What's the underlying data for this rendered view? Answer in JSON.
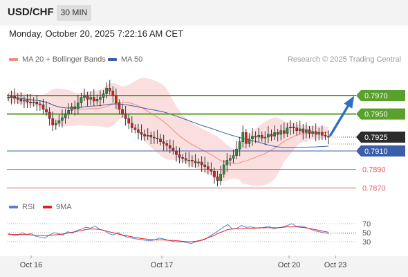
{
  "header": {
    "pair": "USD/CHF",
    "timeframe": "30 MIN"
  },
  "datetime": "Monday, October 20, 2025 7:22:16 AM CET",
  "legend": {
    "bollinger": {
      "label": "MA 20 + Bollinger Bands",
      "color": "#f28b82"
    },
    "ma50": {
      "label": "MA 50",
      "color": "#3a5ea8"
    },
    "rsi": {
      "label": "RSI",
      "color": "#5b7fd6"
    },
    "rsi_ma": {
      "label": "9MA",
      "color": "#e02020"
    }
  },
  "research": "Research © 2025 Trading Central",
  "colors": {
    "up": "#2e8b3e",
    "down": "#c62828",
    "resistance": "#5aa02c",
    "support": "#3a5ea8",
    "target": "#e05a5a",
    "current": "#2b2b2b",
    "arrow": "#2f6fc4",
    "band": "#fbdada"
  },
  "chart_data": [
    {
      "type": "candlestick",
      "x_labels": [
        "Oct 16",
        "Oct 17",
        "Oct 20",
        "Oct 23"
      ],
      "ylim": [
        0.7862,
        0.8
      ],
      "current_price": "0.7925",
      "levels": [
        {
          "label": "0.7970",
          "value": 0.797,
          "kind": "resistance"
        },
        {
          "label": "0.7950",
          "value": 0.795,
          "kind": "resistance"
        },
        {
          "label": "0.7910",
          "value": 0.791,
          "kind": "support"
        },
        {
          "label": "0.7890",
          "value": 0.789,
          "kind": "target"
        },
        {
          "label": "0.7870",
          "value": 0.787,
          "kind": "target"
        }
      ],
      "projection": {
        "from": 0.7925,
        "to": 0.797
      },
      "closes": [
        0.7968,
        0.7969,
        0.7967,
        0.7966,
        0.7964,
        0.7965,
        0.7963,
        0.7962,
        0.7963,
        0.7961,
        0.796,
        0.7955,
        0.7952,
        0.7945,
        0.7938,
        0.794,
        0.7943,
        0.7946,
        0.795,
        0.7954,
        0.7958,
        0.7956,
        0.7962,
        0.7968,
        0.797,
        0.7966,
        0.7968,
        0.7964,
        0.7966,
        0.7968,
        0.7972,
        0.7978,
        0.7975,
        0.797,
        0.7962,
        0.7955,
        0.795,
        0.7945,
        0.794,
        0.7935,
        0.7933,
        0.793,
        0.7928,
        0.7926,
        0.7927,
        0.7925,
        0.7924,
        0.7923,
        0.792,
        0.7918,
        0.7916,
        0.7913,
        0.791,
        0.7906,
        0.7903,
        0.7902,
        0.79,
        0.79,
        0.7899,
        0.7897,
        0.7898,
        0.7895,
        0.7893,
        0.789,
        0.7888,
        0.7882,
        0.7878,
        0.7885,
        0.7895,
        0.79,
        0.7902,
        0.7905,
        0.7912,
        0.792,
        0.793,
        0.7918,
        0.7923,
        0.7926,
        0.7925,
        0.7927,
        0.7924,
        0.7925,
        0.7928,
        0.7926,
        0.793,
        0.7928,
        0.7932,
        0.7929,
        0.7935,
        0.7936,
        0.7935,
        0.7932,
        0.7934,
        0.793,
        0.7933,
        0.7929,
        0.7931,
        0.7928,
        0.793,
        0.7927,
        0.7926,
        0.7925
      ]
    },
    {
      "type": "line",
      "ylim": [
        10,
        90
      ],
      "y_ticks": [
        "70",
        "50",
        "30"
      ],
      "rsi": [
        48,
        45,
        44,
        50,
        46,
        48,
        42,
        40,
        38,
        45,
        50,
        48,
        45,
        52,
        49,
        55,
        58,
        62,
        60,
        65,
        57,
        55,
        48,
        45,
        50,
        44,
        40,
        38,
        36,
        35,
        33,
        32,
        34,
        38,
        36,
        33,
        31,
        29,
        30,
        28,
        26,
        30,
        32,
        35,
        42,
        48,
        55,
        62,
        68,
        58,
        60,
        66,
        62,
        63,
        61,
        60,
        62,
        64,
        58,
        61,
        63,
        66,
        70,
        64,
        65,
        62,
        58,
        54,
        52,
        50,
        48
      ],
      "rsi_ma": [
        46,
        46,
        46,
        46,
        46,
        45,
        44,
        44,
        43,
        44,
        45,
        46,
        47,
        49,
        51,
        53,
        55,
        57,
        58,
        58,
        57,
        55,
        52,
        50,
        47,
        45,
        43,
        41,
        39,
        37,
        36,
        35,
        34,
        34,
        34,
        33,
        33,
        32,
        31,
        30,
        30,
        31,
        33,
        36,
        40,
        44,
        49,
        53,
        57,
        58,
        59,
        59,
        60,
        60,
        60,
        61,
        61,
        61,
        61,
        61,
        62,
        63,
        63,
        63,
        62,
        61,
        59,
        57,
        55,
        53,
        51
      ]
    }
  ]
}
